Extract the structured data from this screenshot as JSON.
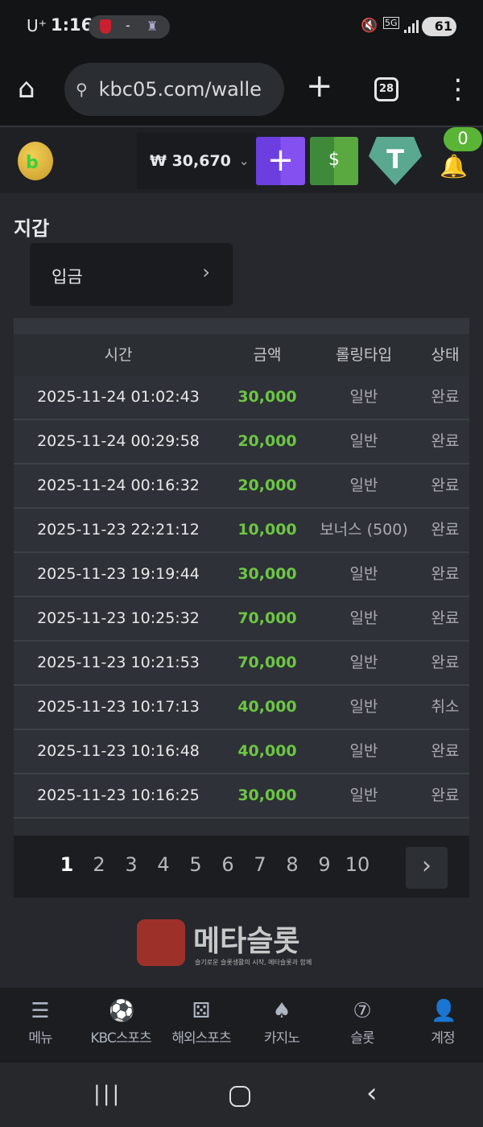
{
  "status_bar": {
    "carrier": "U⁺",
    "time": "1:16",
    "score_separator": "-",
    "network": "5G",
    "battery": "61"
  },
  "browser": {
    "url": "kbc05.com/walle",
    "tab_count": "28"
  },
  "header": {
    "balance": "₩ 30,670",
    "notification_count": "0"
  },
  "page": {
    "title": "지갑",
    "deposit_label": "입금"
  },
  "table": {
    "headers": [
      "시간",
      "금액",
      "롤링타입",
      "상태"
    ],
    "rows": [
      [
        "2025-11-24 01:02:43",
        "30,000",
        "일반",
        "완료"
      ],
      [
        "2025-11-24 00:29:58",
        "20,000",
        "일반",
        "완료"
      ],
      [
        "2025-11-24 00:16:32",
        "20,000",
        "일반",
        "완료"
      ],
      [
        "2025-11-23 22:21:12",
        "10,000",
        "보너스 (500)",
        "완료"
      ],
      [
        "2025-11-23 19:19:44",
        "30,000",
        "일반",
        "완료"
      ],
      [
        "2025-11-23 10:25:32",
        "70,000",
        "일반",
        "완료"
      ],
      [
        "2025-11-23 10:21:53",
        "70,000",
        "일반",
        "완료"
      ],
      [
        "2025-11-23 10:17:13",
        "40,000",
        "일반",
        "취소"
      ],
      [
        "2025-11-23 10:16:48",
        "40,000",
        "일반",
        "완료"
      ],
      [
        "2025-11-23 10:16:25",
        "30,000",
        "일반",
        "완료"
      ]
    ]
  },
  "pagination": {
    "pages": [
      "1",
      "2",
      "3",
      "4",
      "5",
      "6",
      "7",
      "8",
      "9",
      "10"
    ],
    "current": "1"
  },
  "watermark": {
    "text": "메타슬롯",
    "subtext": "슬기로운 슬롯생활의 시작, 메타슬롯과 함께"
  },
  "bottom_nav": [
    {
      "label": "메뉴",
      "icon": "menu-search-icon"
    },
    {
      "label": "KBC스포츠",
      "icon": "soccer-ball-icon"
    },
    {
      "label": "해외스포츠",
      "icon": "dice-icon"
    },
    {
      "label": "카지노",
      "icon": "cards-icon"
    },
    {
      "label": "슬롯",
      "icon": "slot-7-icon"
    },
    {
      "label": "계정",
      "icon": "account-dollar-icon"
    }
  ],
  "colors": {
    "amount": "#6cc644",
    "accent_purple": "#7a43e8",
    "accent_green": "#4e9e3c",
    "tether": "#50af95"
  }
}
